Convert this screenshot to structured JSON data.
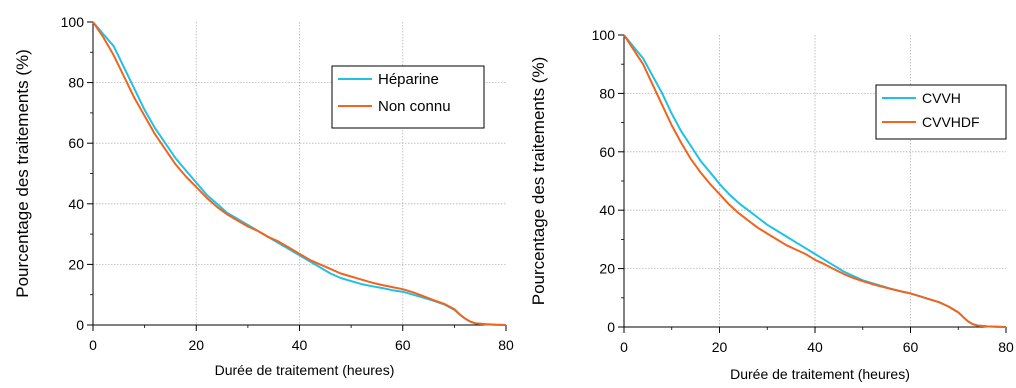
{
  "chart_data": [
    {
      "type": "line",
      "xlabel": "Durée de traitement (heures)",
      "ylabel": "Pourcentage des traitements (%)",
      "xlim": [
        0,
        80
      ],
      "ylim": [
        0,
        100
      ],
      "xticks": [
        "0",
        "20",
        "40",
        "60",
        "80"
      ],
      "yticks": [
        "0",
        "20",
        "40",
        "60",
        "80",
        "100"
      ],
      "grid": true,
      "legend_position": "top-right",
      "series": [
        {
          "name": "Héparine",
          "color": "#1fc1e6",
          "x": [
            0,
            2,
            4,
            6,
            8,
            10,
            12,
            14,
            16,
            18,
            20,
            22,
            24,
            26,
            28,
            30,
            32,
            34,
            36,
            38,
            40,
            42,
            44,
            46,
            48,
            50,
            52,
            54,
            56,
            58,
            60,
            62,
            64,
            66,
            68,
            70,
            71,
            72,
            73,
            74,
            76,
            78,
            80
          ],
          "y": [
            100,
            96,
            92,
            85,
            78,
            71,
            65,
            60,
            55,
            51,
            47,
            43,
            40,
            37,
            35,
            33,
            31,
            29,
            27,
            25,
            23,
            21,
            19,
            17,
            15.5,
            14.5,
            13.5,
            12.8,
            12.2,
            11.5,
            11,
            10,
            9,
            8,
            6.8,
            5,
            3.5,
            2.2,
            1.2,
            0.6,
            0.2,
            0.1,
            0
          ]
        },
        {
          "name": "Non connu",
          "color": "#f0641e",
          "x": [
            0,
            2,
            4,
            6,
            8,
            10,
            12,
            14,
            16,
            18,
            20,
            22,
            24,
            26,
            28,
            30,
            32,
            34,
            36,
            38,
            40,
            42,
            44,
            46,
            48,
            50,
            52,
            54,
            56,
            58,
            60,
            62,
            64,
            66,
            68,
            70,
            71,
            72,
            73,
            74,
            76,
            78,
            80
          ],
          "y": [
            100,
            95,
            89,
            82,
            75,
            69,
            63,
            58,
            53,
            49,
            45.5,
            42,
            39,
            36.5,
            34.5,
            32.5,
            31,
            29,
            27.5,
            25.5,
            23.5,
            21.5,
            20,
            18.5,
            17,
            16,
            15,
            14,
            13.2,
            12.5,
            11.8,
            10.8,
            9.5,
            8.2,
            7,
            5.2,
            3.6,
            2.2,
            1.2,
            0.6,
            0.3,
            0.1,
            0
          ]
        }
      ]
    },
    {
      "type": "line",
      "xlabel": "Durée de traitement (heures)",
      "ylabel": "Pourcentage des traitements (%)",
      "xlim": [
        0,
        80
      ],
      "ylim": [
        0,
        100
      ],
      "xticks": [
        "0",
        "20",
        "40",
        "60",
        "80"
      ],
      "yticks": [
        "0",
        "20",
        "40",
        "60",
        "80",
        "100"
      ],
      "grid": true,
      "legend_position": "top-right",
      "series": [
        {
          "name": "CVVH",
          "color": "#1fc1e6",
          "x": [
            0,
            2,
            4,
            6,
            8,
            10,
            12,
            14,
            16,
            18,
            20,
            22,
            24,
            26,
            28,
            30,
            32,
            34,
            36,
            38,
            40,
            42,
            44,
            46,
            48,
            50,
            52,
            54,
            56,
            58,
            60,
            62,
            64,
            66,
            68,
            70,
            71,
            72,
            73,
            74,
            76,
            78,
            80
          ],
          "y": [
            100,
            96,
            92,
            86,
            80,
            73,
            67,
            62,
            57,
            53,
            49,
            45.5,
            42.5,
            40,
            37.5,
            35,
            33,
            31,
            29,
            27,
            25,
            23,
            21,
            19,
            17.5,
            16,
            15,
            14,
            13,
            12.2,
            11.5,
            10.5,
            9.5,
            8.5,
            7,
            5,
            3.5,
            2,
            1,
            0.5,
            0.2,
            0.1,
            0
          ]
        },
        {
          "name": "CVVHDF",
          "color": "#f0641e",
          "x": [
            0,
            2,
            4,
            6,
            8,
            10,
            12,
            14,
            16,
            18,
            20,
            22,
            24,
            26,
            28,
            30,
            32,
            34,
            36,
            38,
            40,
            42,
            44,
            46,
            48,
            50,
            52,
            54,
            56,
            58,
            60,
            62,
            64,
            66,
            68,
            70,
            71,
            72,
            73,
            74,
            76,
            78,
            80
          ],
          "y": [
            100,
            95,
            90,
            83,
            76,
            69,
            63,
            57.5,
            53,
            49,
            45.5,
            42,
            39,
            36.5,
            34,
            32,
            30,
            28,
            26.5,
            25,
            23,
            21.5,
            19.8,
            18.2,
            16.8,
            15.7,
            14.7,
            13.8,
            13,
            12.2,
            11.5,
            10.5,
            9.5,
            8.5,
            7,
            5,
            3.5,
            2,
            1,
            0.5,
            0.2,
            0.1,
            0
          ]
        }
      ]
    }
  ]
}
